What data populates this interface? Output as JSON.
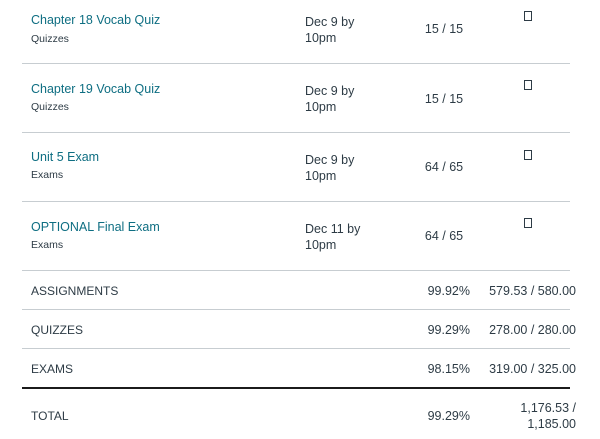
{
  "assignments": [
    {
      "name": "Chapter 18 Vocab Quiz",
      "context": "Quizzes",
      "due_line1": "Dec 9 by",
      "due_line2": "10pm",
      "score": "15 / 15"
    },
    {
      "name": "Chapter 19 Vocab Quiz",
      "context": "Quizzes",
      "due_line1": "Dec 9 by",
      "due_line2": "10pm",
      "score": "15 / 15"
    },
    {
      "name": "Unit 5 Exam",
      "context": "Exams",
      "due_line1": "Dec 9 by",
      "due_line2": "10pm",
      "score": "64 / 65"
    },
    {
      "name": "OPTIONAL Final Exam",
      "context": "Exams",
      "due_line1": "Dec 11 by",
      "due_line2": "10pm",
      "score": "64 / 65"
    }
  ],
  "groups": [
    {
      "label": "ASSIGNMENTS",
      "percent": "99.92%",
      "points": "579.53 / 580.00"
    },
    {
      "label": "QUIZZES",
      "percent": "99.29%",
      "points": "278.00 / 280.00"
    },
    {
      "label": "EXAMS",
      "percent": "98.15%",
      "points": "319.00 / 325.00"
    }
  ],
  "total": {
    "label": "TOTAL",
    "percent": "99.29%",
    "points_line1": "1,176.53 /",
    "points_line2": "1,185.00"
  },
  "icons": {
    "details": "details-icon"
  },
  "colors": {
    "link": "#0e6e82",
    "text": "#2d3b45",
    "divider": "#c7cdd1"
  }
}
